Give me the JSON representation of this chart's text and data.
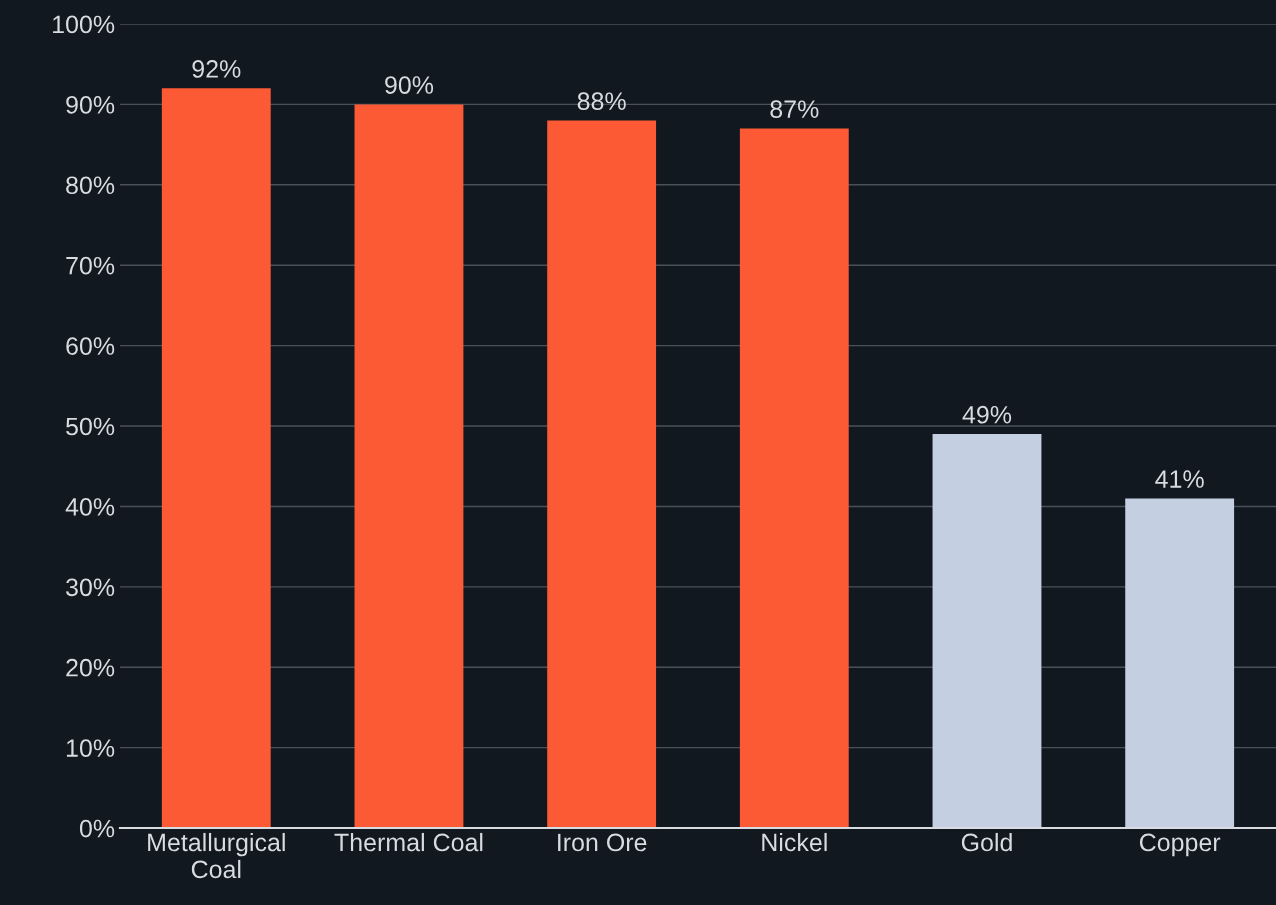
{
  "chart_data": {
    "type": "bar",
    "categories": [
      "Metallurgical\nCoal",
      "Thermal Coal",
      "Iron Ore",
      "Nickel",
      "Gold",
      "Copper"
    ],
    "values": [
      92,
      90,
      88,
      87,
      49,
      41
    ],
    "colors": [
      "#fb5a34",
      "#fb5a34",
      "#fb5a34",
      "#fb5a34",
      "#c4cfe1",
      "#c4cfe1"
    ],
    "value_labels": [
      "92%",
      "90%",
      "88%",
      "87%",
      "49%",
      "41%"
    ],
    "ylim": [
      0,
      100
    ],
    "yticks": [
      {
        "value": 0,
        "label": "0%"
      },
      {
        "value": 10,
        "label": "10%"
      },
      {
        "value": 20,
        "label": "20%"
      },
      {
        "value": 30,
        "label": "30%"
      },
      {
        "value": 40,
        "label": "40%"
      },
      {
        "value": 50,
        "label": "50%"
      },
      {
        "value": 60,
        "label": "60%"
      },
      {
        "value": 70,
        "label": "70%"
      },
      {
        "value": 80,
        "label": "80%"
      },
      {
        "value": 90,
        "label": "90%"
      },
      {
        "value": 100,
        "label": "100%"
      }
    ],
    "grid": "y"
  }
}
